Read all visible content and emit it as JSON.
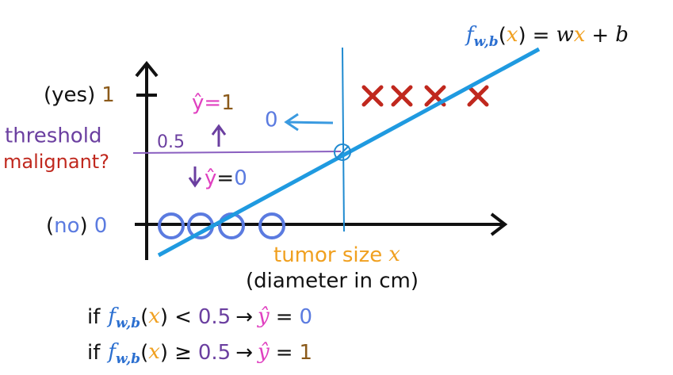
{
  "formula": [
    "f",
    "w,b",
    "(",
    "x",
    ")",
    "=",
    "w",
    "x",
    "+",
    "b"
  ],
  "yes_label": [
    "(yes)",
    "1"
  ],
  "no_label": [
    "(",
    "no",
    ")",
    "0"
  ],
  "threshold": "threshold",
  "malignant": "malignant?",
  "half": "0.5",
  "yhat1": [
    "ŷ",
    "=",
    "1"
  ],
  "yhat0": [
    "ŷ",
    "=",
    "0"
  ],
  "arrow_zero": "0",
  "x_label": [
    "tumor size",
    "x"
  ],
  "x_sub": "(diameter in cm)",
  "rule1": [
    "if",
    "f",
    "w,b",
    "(",
    "x",
    ")",
    "<",
    "0.5",
    "→",
    "ŷ",
    "=",
    "0"
  ],
  "rule2": [
    "if",
    "f",
    "w,b",
    "(",
    "x",
    ")",
    "≥",
    "0.5",
    "→",
    "ŷ",
    "=",
    "1"
  ]
}
